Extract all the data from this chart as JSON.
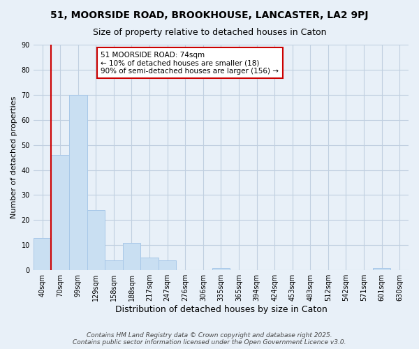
{
  "title": "51, MOORSIDE ROAD, BROOKHOUSE, LANCASTER, LA2 9PJ",
  "subtitle": "Size of property relative to detached houses in Caton",
  "xlabel": "Distribution of detached houses by size in Caton",
  "ylabel": "Number of detached properties",
  "categories": [
    "40sqm",
    "70sqm",
    "99sqm",
    "129sqm",
    "158sqm",
    "188sqm",
    "217sqm",
    "247sqm",
    "276sqm",
    "306sqm",
    "335sqm",
    "365sqm",
    "394sqm",
    "424sqm",
    "453sqm",
    "483sqm",
    "512sqm",
    "542sqm",
    "571sqm",
    "601sqm",
    "630sqm"
  ],
  "values": [
    13,
    46,
    70,
    24,
    4,
    11,
    5,
    4,
    0,
    0,
    1,
    0,
    0,
    0,
    0,
    0,
    0,
    0,
    0,
    1,
    0
  ],
  "bar_color": "#c9dff2",
  "bar_edge_color": "#a8c8e8",
  "vline_x": 0.5,
  "vline_color": "#cc0000",
  "annotation_text": "51 MOORSIDE ROAD: 74sqm\n← 10% of detached houses are smaller (18)\n90% of semi-detached houses are larger (156) →",
  "annotation_box_color": "white",
  "annotation_box_edge_color": "#cc0000",
  "ylim": [
    0,
    90
  ],
  "yticks": [
    0,
    10,
    20,
    30,
    40,
    50,
    60,
    70,
    80,
    90
  ],
  "grid_color": "#c0cfe0",
  "background_color": "#e8f0f8",
  "footer_line1": "Contains HM Land Registry data © Crown copyright and database right 2025.",
  "footer_line2": "Contains public sector information licensed under the Open Government Licence v3.0.",
  "title_fontsize": 10,
  "subtitle_fontsize": 9,
  "xlabel_fontsize": 9,
  "ylabel_fontsize": 8,
  "tick_fontsize": 7,
  "annotation_fontsize": 7.5,
  "footer_fontsize": 6.5
}
